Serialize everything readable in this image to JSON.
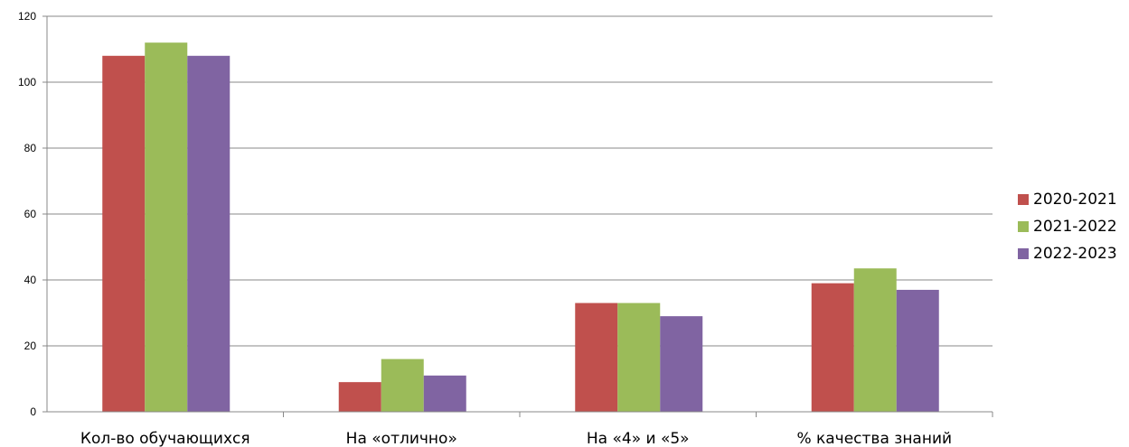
{
  "chart_data": {
    "type": "bar",
    "title": "",
    "xlabel": "",
    "ylabel": "",
    "categories": [
      "Кол-во обучающихся",
      "На «отлично»",
      "На «4» и «5»",
      "% качества знаний"
    ],
    "series": [
      {
        "name": "2020-2021",
        "color": "#c0504d",
        "values": [
          108,
          9,
          33,
          39
        ]
      },
      {
        "name": "2021-2022",
        "color": "#9bbb59",
        "values": [
          112,
          16,
          33,
          43.5
        ]
      },
      {
        "name": "2022-2023",
        "color": "#8064a2",
        "values": [
          108,
          11,
          29,
          37
        ]
      }
    ],
    "ylim": [
      0,
      120
    ],
    "yticks": [
      "0",
      "20",
      "40",
      "60",
      "80",
      "100",
      "120"
    ],
    "grid": true,
    "legend": "right"
  }
}
